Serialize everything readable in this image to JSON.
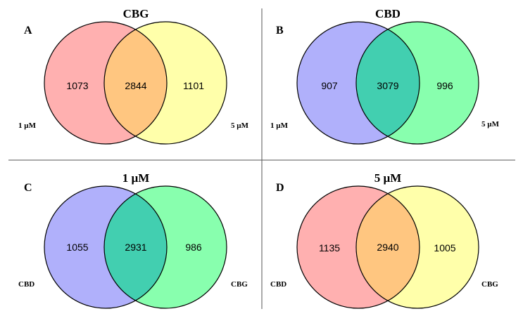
{
  "figure": {
    "panels": [
      {
        "letter": "A",
        "title": "CBG",
        "left_label": "1 µM",
        "right_label": "5 µM",
        "left_only": "1073",
        "overlap": "2844",
        "right_only": "1101",
        "left_color": "#ffb0b0",
        "right_color": "#ffffaa",
        "overlap_color": "#ffc680"
      },
      {
        "letter": "B",
        "title": "CBD",
        "left_label": "1 µM",
        "right_label": "5 µM",
        "left_only": "907",
        "overlap": "3079",
        "right_only": "996",
        "left_color": "#b0b0fb",
        "right_color": "#88ffae",
        "overlap_color": "#42cfb0"
      },
      {
        "letter": "C",
        "title": "1 µM",
        "left_label": "CBD",
        "right_label": "CBG",
        "left_only": "1055",
        "overlap": "2931",
        "right_only": "986",
        "left_color": "#b0b0fb",
        "right_color": "#88ffae",
        "overlap_color": "#42cfb0"
      },
      {
        "letter": "D",
        "title": "5 µM",
        "left_label": "CBD",
        "right_label": "CBG",
        "left_only": "1135",
        "overlap": "2940",
        "right_only": "1005",
        "left_color": "#ffb0b0",
        "right_color": "#ffffaa",
        "overlap_color": "#ffc680"
      }
    ]
  }
}
